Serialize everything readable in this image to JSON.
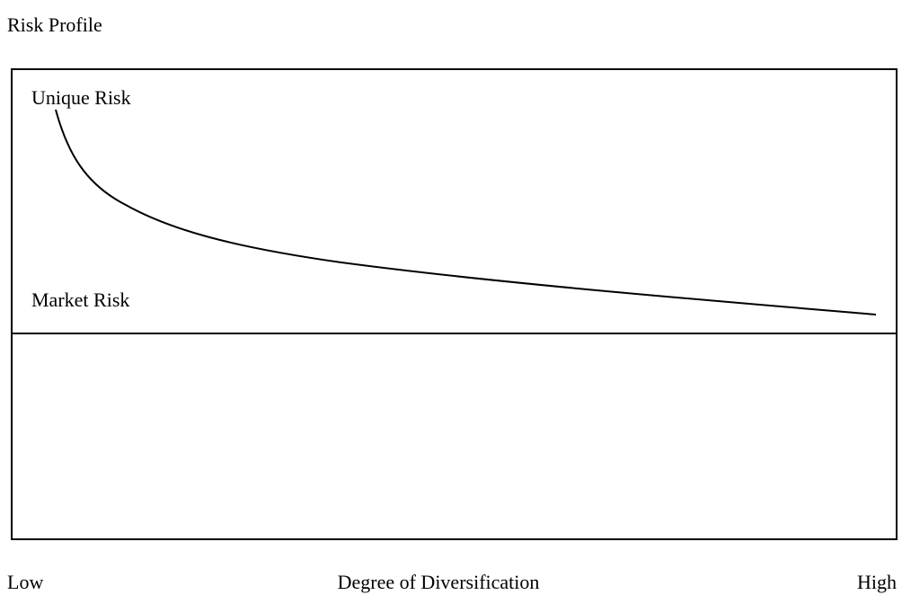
{
  "title": "Risk Profile",
  "curve_labels": {
    "unique": "Unique Risk",
    "market": "Market Risk"
  },
  "x_axis": {
    "low": "Low",
    "label": "Degree of Diversification",
    "high": "High"
  }
}
